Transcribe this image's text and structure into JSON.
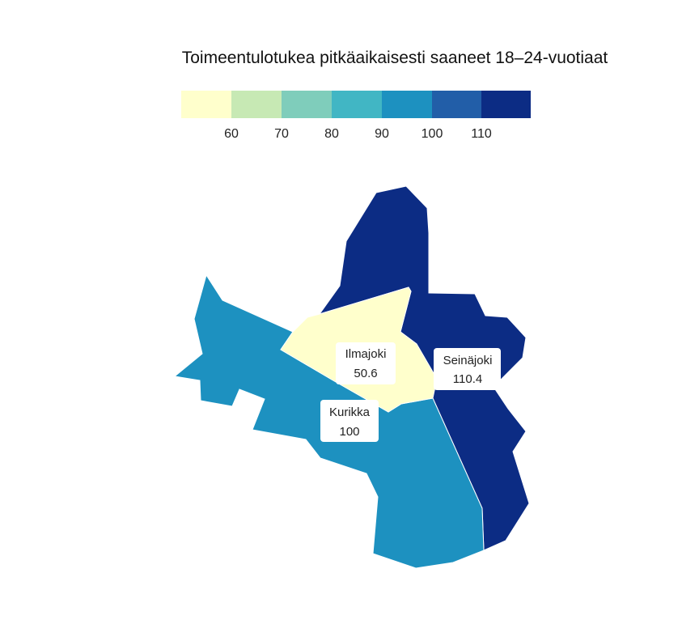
{
  "title": "Toimeentulotukea pitkäaikaisesti saaneet 18–24-vuotiaat",
  "legend": {
    "colors": [
      "#ffffcc",
      "#c7e9b4",
      "#7fcdbb",
      "#41b6c4",
      "#1d91c0",
      "#225ea8",
      "#0c2c84"
    ],
    "ticks": [
      "60",
      "70",
      "80",
      "90",
      "100",
      "110"
    ]
  },
  "regions": [
    {
      "name": "Seinäjoki",
      "value": "110.4",
      "color": "#0c2c84"
    },
    {
      "name": "Kurikka",
      "value": "100",
      "color": "#1d91c0"
    },
    {
      "name": "Ilmajoki",
      "value": "50.6",
      "color": "#ffffcc"
    }
  ]
}
